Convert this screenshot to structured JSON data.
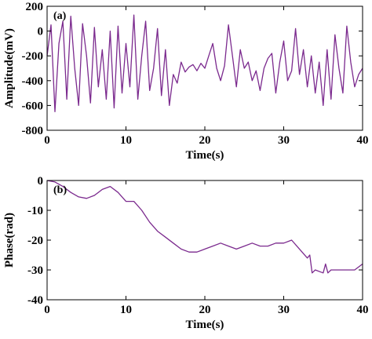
{
  "colors": {
    "series": "#7b2a8e",
    "axis": "#000000",
    "background": "#ffffff"
  },
  "chart_data": [
    {
      "type": "line",
      "panel_label": "(a)",
      "xlabel": "Time(s)",
      "ylabel": "Amplitude(mV)",
      "xlim": [
        0,
        40
      ],
      "ylim": [
        -800,
        200
      ],
      "xticks": [
        0,
        10,
        20,
        30,
        40
      ],
      "yticks": [
        200,
        0,
        -200,
        -400,
        -600,
        -800
      ],
      "grid": false,
      "series": [
        {
          "x": [
            0,
            0.5,
            1,
            1.5,
            2,
            2.5,
            3,
            3.5,
            4,
            4.5,
            5,
            5.5,
            6,
            6.5,
            7,
            7.5,
            8,
            8.5,
            9,
            9.5,
            10,
            10.5,
            11,
            11.5,
            12,
            12.5,
            13,
            13.5,
            14,
            14.5,
            15,
            15.5,
            16,
            16.5,
            17,
            17.5,
            18,
            18.5,
            19,
            19.5,
            20,
            20.5,
            21,
            21.5,
            22,
            22.5,
            23,
            23.5,
            24,
            24.5,
            25,
            25.5,
            26,
            26.5,
            27,
            27.5,
            28,
            28.5,
            29,
            29.5,
            30,
            30.5,
            31,
            31.5,
            32,
            32.5,
            33,
            33.5,
            34,
            34.5,
            35,
            35.5,
            36,
            36.5,
            37,
            37.5,
            38,
            38.5,
            39,
            39.5,
            40
          ],
          "values": [
            -200,
            50,
            -650,
            -100,
            80,
            -550,
            120,
            -300,
            -600,
            60,
            -200,
            -580,
            30,
            -450,
            -150,
            -550,
            0,
            -620,
            40,
            -500,
            -100,
            -450,
            130,
            -550,
            -200,
            80,
            -480,
            -300,
            20,
            -520,
            -150,
            -600,
            -350,
            -420,
            -250,
            -330,
            -290,
            -270,
            -320,
            -260,
            -300,
            -200,
            -100,
            -300,
            -400,
            -280,
            50,
            -200,
            -450,
            -150,
            -300,
            -250,
            -400,
            -320,
            -480,
            -300,
            -220,
            -180,
            -500,
            -250,
            -80,
            -400,
            -320,
            20,
            -350,
            -150,
            -450,
            -200,
            -500,
            -250,
            -600,
            -150,
            -550,
            -30,
            -300,
            -500,
            40,
            -250,
            -450,
            -350,
            -300
          ]
        }
      ]
    },
    {
      "type": "line",
      "panel_label": "(b)",
      "xlabel": "Time(s)",
      "ylabel": "Phase(rad)",
      "xlim": [
        0,
        40
      ],
      "ylim": [
        -40,
        0
      ],
      "xticks": [
        0,
        10,
        20,
        30,
        40
      ],
      "yticks": [
        0,
        -10,
        -20,
        -30,
        -40
      ],
      "grid": false,
      "series": [
        {
          "x": [
            0,
            1,
            2,
            3,
            4,
            5,
            6,
            7,
            8,
            9,
            10,
            11,
            12,
            13,
            14,
            15,
            16,
            17,
            18,
            19,
            20,
            21,
            22,
            23,
            24,
            25,
            26,
            27,
            28,
            29,
            30,
            31,
            32,
            33,
            33.3,
            33.6,
            34,
            35,
            35.3,
            35.6,
            36,
            37,
            38,
            39,
            40
          ],
          "values": [
            0,
            -0.5,
            -2,
            -4,
            -5.5,
            -6,
            -5,
            -3,
            -2,
            -4,
            -7,
            -7,
            -10,
            -14,
            -17,
            -19,
            -21,
            -23,
            -24,
            -24,
            -23,
            -22,
            -21,
            -22,
            -23,
            -22,
            -21,
            -22,
            -22,
            -21,
            -21,
            -20,
            -23,
            -26,
            -25,
            -31,
            -30,
            -31,
            -28,
            -31,
            -30,
            -30,
            -30,
            -30,
            -28
          ]
        }
      ]
    }
  ]
}
